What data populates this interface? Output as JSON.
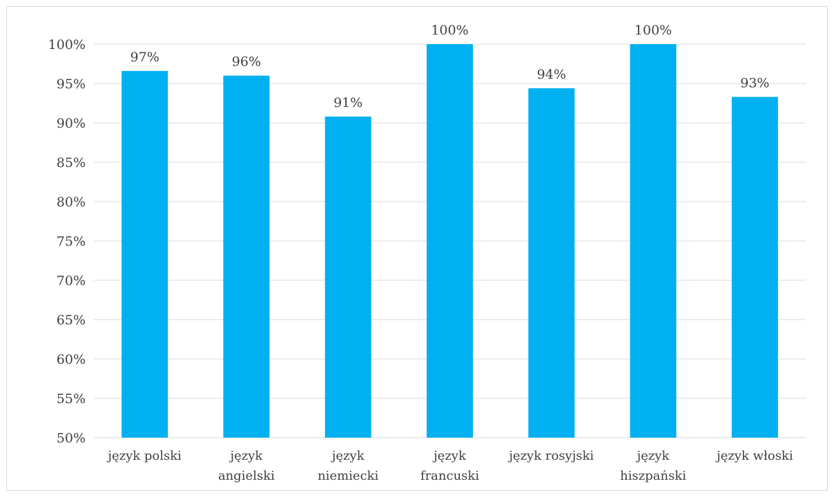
{
  "chart_data": {
    "type": "bar",
    "categories": [
      [
        "język polski"
      ],
      [
        "język",
        "angielski"
      ],
      [
        "język",
        "niemiecki"
      ],
      [
        "język",
        "francuski"
      ],
      [
        "język rosyjski"
      ],
      [
        "język",
        "hiszpański"
      ],
      [
        "język włoski"
      ]
    ],
    "values": [
      96.6,
      96.0,
      90.8,
      100.0,
      94.4,
      100.0,
      93.3
    ],
    "data_labels": [
      "97%",
      "96%",
      "91%",
      "100%",
      "94%",
      "100%",
      "93%"
    ],
    "ylim": [
      50,
      100
    ],
    "yticks": [
      50,
      55,
      60,
      65,
      70,
      75,
      80,
      85,
      90,
      95,
      100
    ],
    "ytick_labels": [
      "50%",
      "55%",
      "60%",
      "65%",
      "70%",
      "75%",
      "80%",
      "85%",
      "90%",
      "95%",
      "100%"
    ],
    "title": "",
    "xlabel": "",
    "ylabel": "",
    "grid": true,
    "legend": "none",
    "colors": {
      "bar": "#00b0f0",
      "grid": "#d9d9d9",
      "text": "#404040"
    }
  }
}
